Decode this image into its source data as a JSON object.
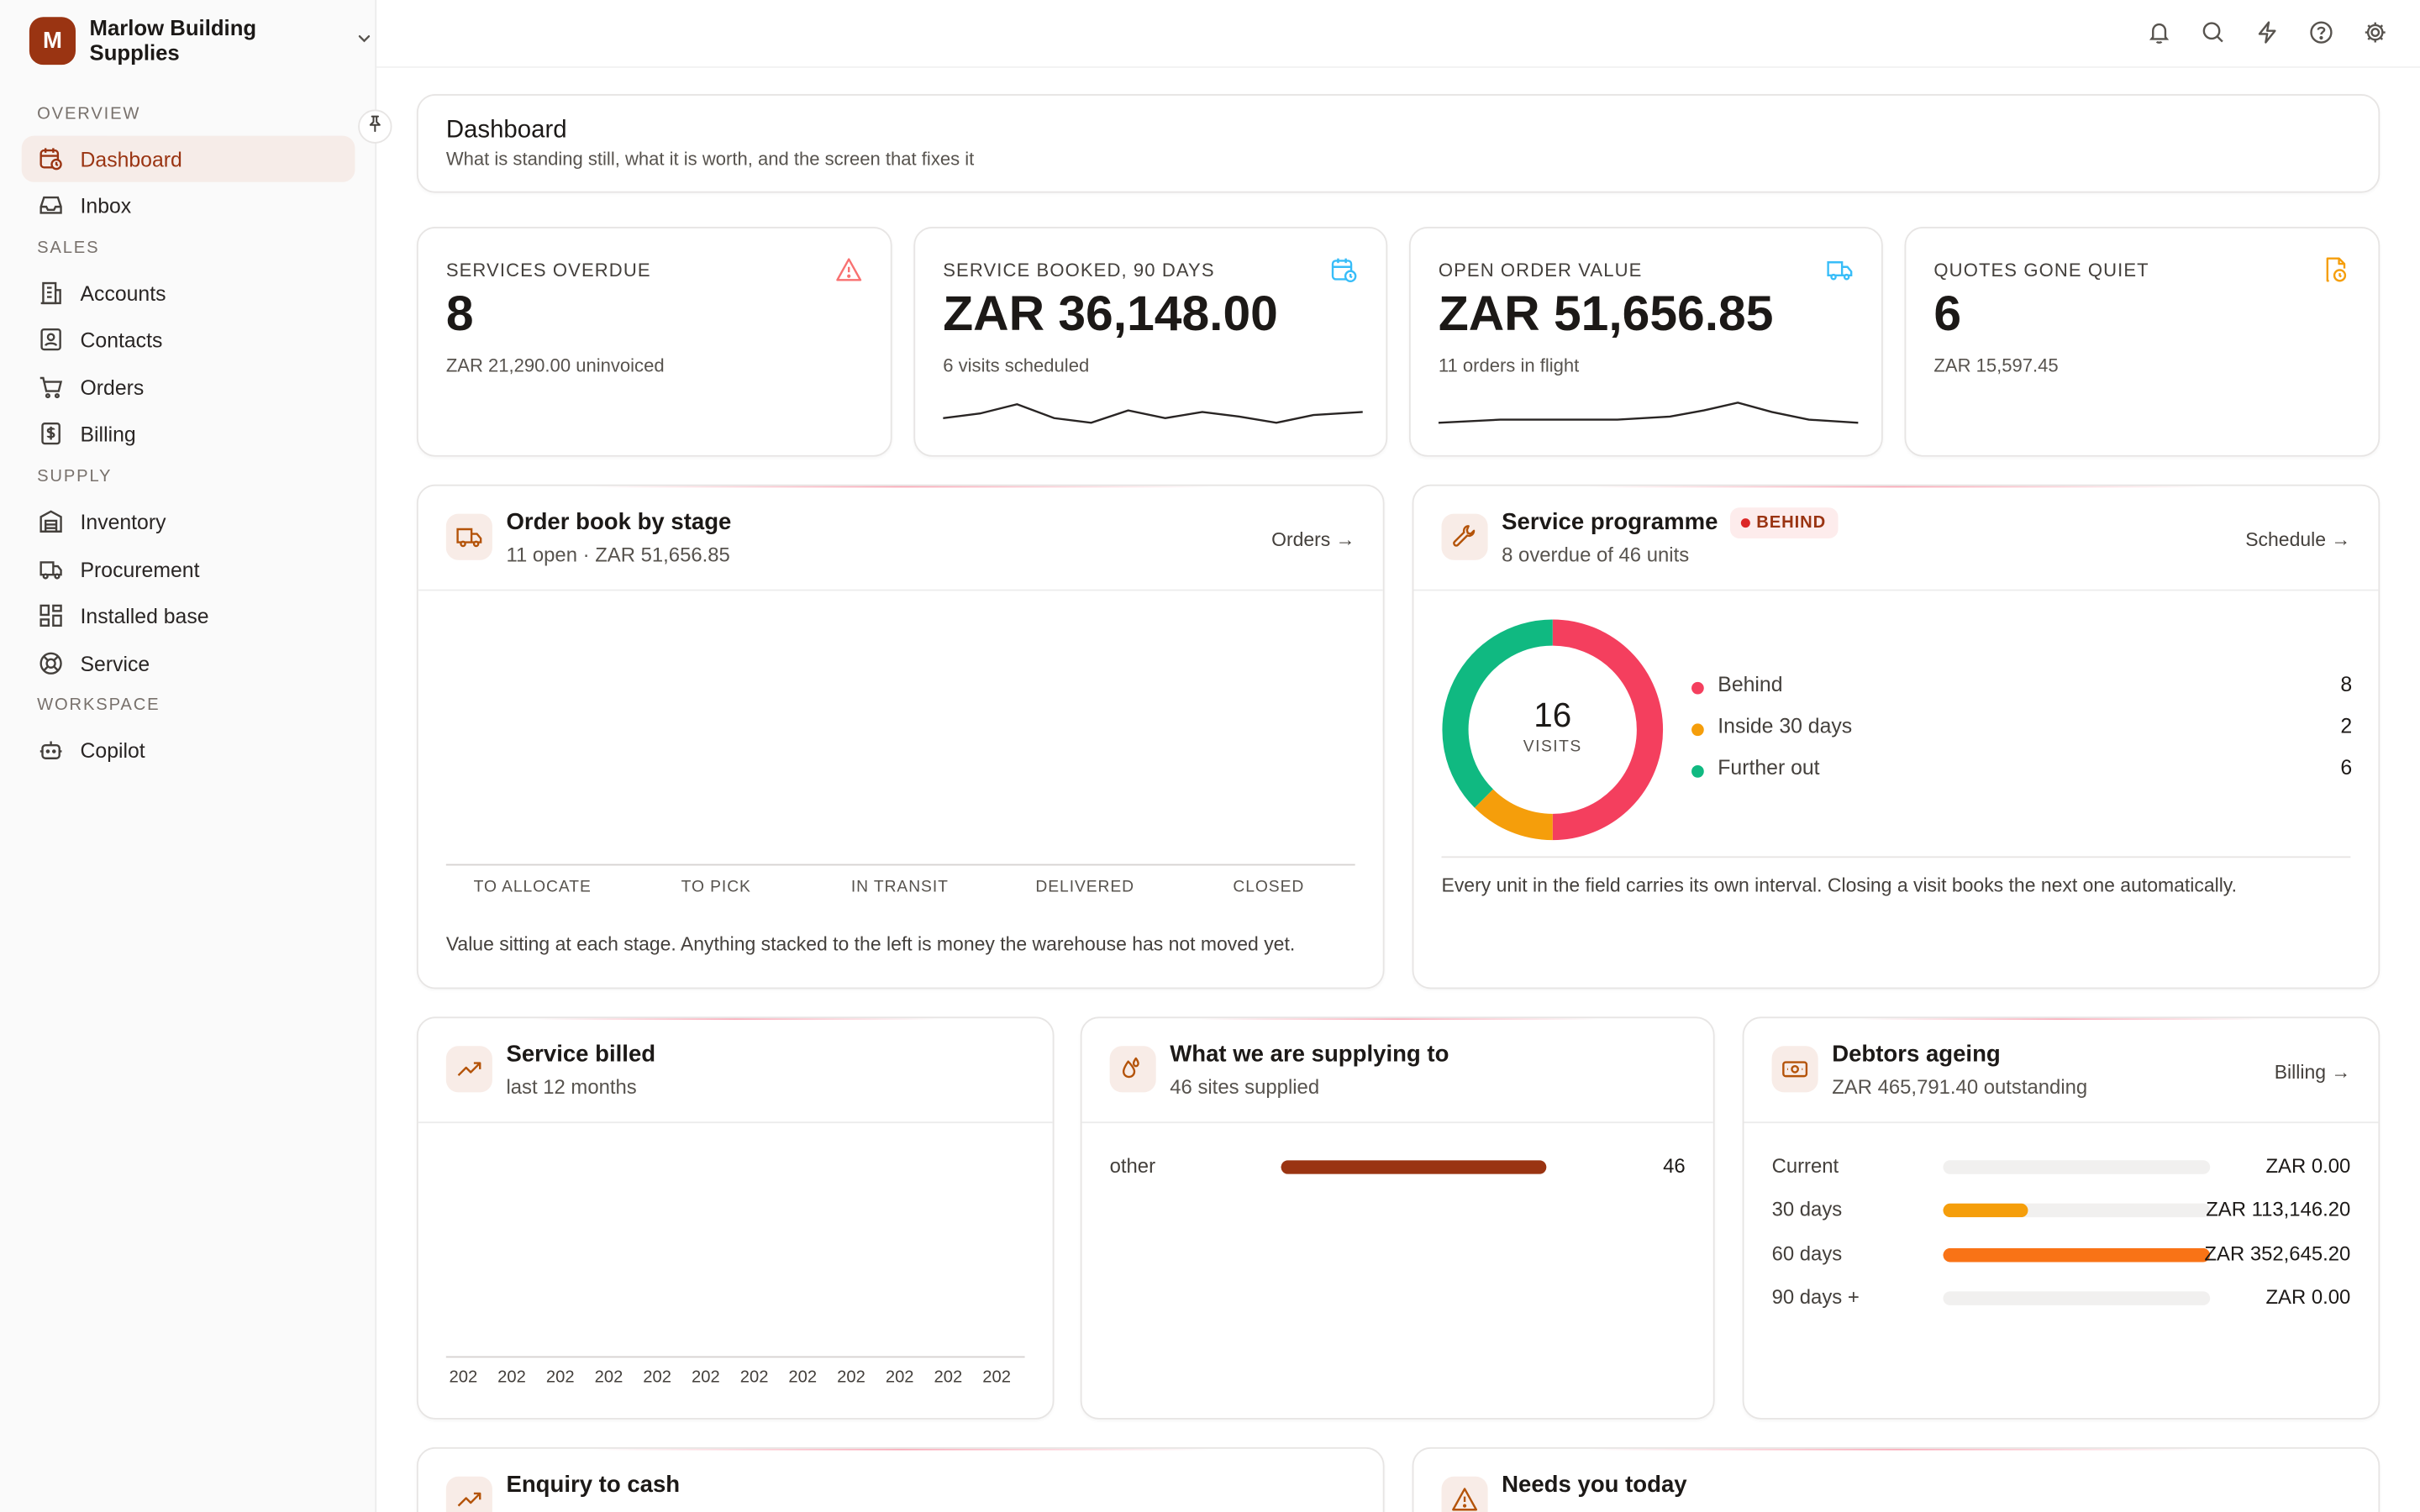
{
  "org": {
    "initial": "M",
    "name": "Marlow Building Supplies"
  },
  "sidebar": {
    "sections": [
      {
        "label": "OVERVIEW"
      },
      {
        "label": "SALES"
      },
      {
        "label": "SUPPLY"
      },
      {
        "label": "WORKSPACE"
      }
    ],
    "items": [
      {
        "label": "Dashboard",
        "icon": "calendar-clock-icon",
        "active": true
      },
      {
        "label": "Inbox",
        "icon": "inbox-icon"
      },
      {
        "label": "Accounts",
        "icon": "building-icon"
      },
      {
        "label": "Contacts",
        "icon": "contact-card-icon"
      },
      {
        "label": "Orders",
        "icon": "cart-icon"
      },
      {
        "label": "Billing",
        "icon": "dollar-receipt-icon"
      },
      {
        "label": "Inventory",
        "icon": "warehouse-icon"
      },
      {
        "label": "Procurement",
        "icon": "truck-icon"
      },
      {
        "label": "Installed base",
        "icon": "grid-icon"
      },
      {
        "label": "Service",
        "icon": "lifebuoy-icon"
      },
      {
        "label": "Copilot",
        "icon": "bot-icon"
      }
    ]
  },
  "topbar": {
    "icons": [
      "bell-icon",
      "search-icon",
      "bolt-icon",
      "help-icon",
      "gear-icon"
    ]
  },
  "page": {
    "title": "Dashboard",
    "subtitle": "What is standing still, what it is worth, and the screen that fixes it"
  },
  "kpis": [
    {
      "label": "SERVICES OVERDUE",
      "value": "8",
      "sub": "ZAR 21,290.00 uninvoiced",
      "icon": "warning-icon",
      "icon_color": "#f87171"
    },
    {
      "label": "SERVICE BOOKED, 90 DAYS",
      "value": "ZAR 36,148.00",
      "sub": "6 visits scheduled",
      "icon": "calendar-clock-icon",
      "icon_color": "#38bdf8"
    },
    {
      "label": "OPEN ORDER VALUE",
      "value": "ZAR 51,656.85",
      "sub": "11 orders in flight",
      "icon": "truck-icon",
      "icon_color": "#38bdf8"
    },
    {
      "label": "QUOTES GONE QUIET",
      "value": "6",
      "sub": "ZAR 15,597.45",
      "icon": "file-clock-icon",
      "icon_color": "#f59e0b"
    }
  ],
  "order_book": {
    "title": "Order book by stage",
    "subtitle": "11 open · ZAR 51,656.85",
    "link": "Orders →",
    "stages": [
      "TO ALLOCATE",
      "TO PICK",
      "IN TRANSIT",
      "DELIVERED",
      "CLOSED"
    ],
    "note": "Value sitting at each stage. Anything stacked to the left is money the warehouse has not moved yet."
  },
  "service_programme": {
    "title": "Service programme",
    "badge": "BEHIND",
    "subtitle": "8 overdue of 46 units",
    "link": "Schedule →",
    "total": "16",
    "total_label": "VISITS",
    "legend": [
      {
        "label": "Behind",
        "value": 8,
        "color": "#f43f5e"
      },
      {
        "label": "Inside 30 days",
        "value": 2,
        "color": "#f59e0b"
      },
      {
        "label": "Further out",
        "value": 6,
        "color": "#10b981"
      }
    ],
    "note": "Every unit in the field carries its own interval. Closing a visit books the next one automatically."
  },
  "service_billed": {
    "title": "Service billed",
    "subtitle": "last 12 months",
    "months": [
      "202",
      "202",
      "202",
      "202",
      "202",
      "202",
      "202",
      "202",
      "202",
      "202",
      "202",
      "202"
    ]
  },
  "supplying": {
    "title": "What we are supplying to",
    "subtitle": "46 sites supplied",
    "rows": [
      {
        "label": "other",
        "value": "46",
        "fraction": 1.0,
        "color": "#9a3412"
      }
    ]
  },
  "debtors": {
    "title": "Debtors ageing",
    "subtitle": "ZAR 465,791.40 outstanding",
    "link": "Billing →",
    "rows": [
      {
        "label": "Current",
        "value": "ZAR 0.00",
        "fraction": 0.0,
        "color": "#f59e0b"
      },
      {
        "label": "30 days",
        "value": "ZAR 113,146.20",
        "fraction": 0.32,
        "color": "#f59e0b"
      },
      {
        "label": "60 days",
        "value": "ZAR 352,645.20",
        "fraction": 1.0,
        "color": "#f97316"
      },
      {
        "label": "90 days +",
        "value": "ZAR 0.00",
        "fraction": 0.0,
        "color": "#ef4444"
      }
    ]
  },
  "enquiry": {
    "title": "Enquiry to cash"
  },
  "needs_today": {
    "title": "Needs you today"
  }
}
